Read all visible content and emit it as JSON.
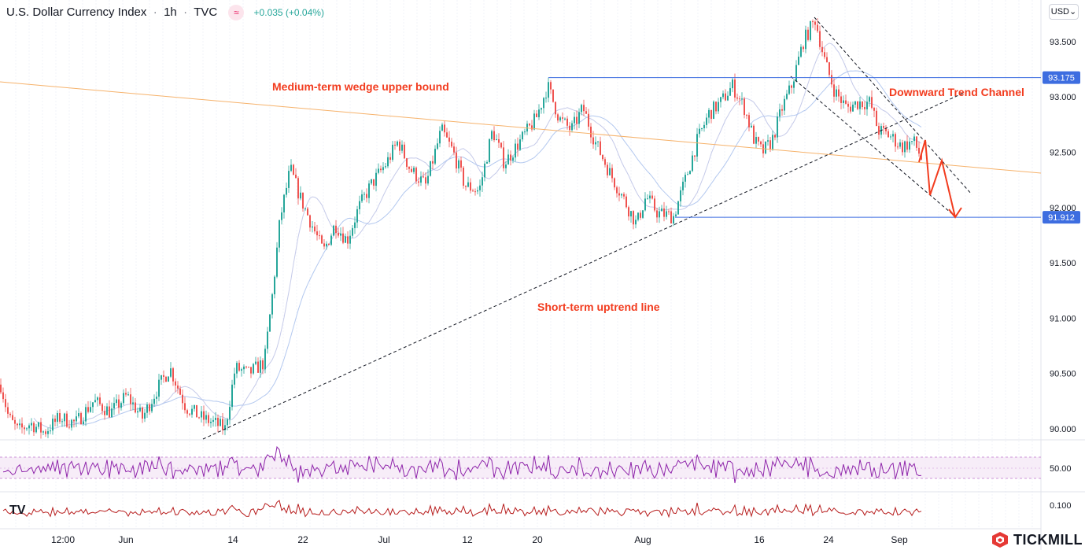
{
  "header": {
    "symbol": "U.S. Dollar Currency Index",
    "interval": "1h",
    "exchange": "TVC",
    "change": "+0.035 (+0.04%)"
  },
  "currency_selector": "USD",
  "watermark": "TV",
  "brand": "TICKMILL",
  "colors": {
    "up": "#26a69a",
    "down": "#ef5350",
    "annotation": "#f23c1f",
    "level_line": "#3d6de0",
    "wedge": "#f6b26b",
    "ma_fast": "#c5cae9",
    "ma_slow": "#b3c8ef",
    "rsi": "#8e24aa",
    "osc": "#b71c1c"
  },
  "chart_data": {
    "type": "candlestick",
    "title": "U.S. Dollar Currency Index · 1h · TVC",
    "ylim": [
      89.95,
      93.85
    ],
    "y_ticks": [
      "93.500",
      "93.000",
      "92.500",
      "92.000",
      "91.500",
      "91.000",
      "90.500",
      "90.000"
    ],
    "y_tick_values": [
      93.5,
      93.0,
      92.5,
      92.0,
      91.5,
      91.0,
      90.5,
      90.0
    ],
    "x_ticks": [
      "12:00",
      "Jun",
      "14",
      "22",
      "Jul",
      "12",
      "20",
      "Aug",
      "16",
      "24",
      "Sep"
    ],
    "anchors": [
      [
        0,
        90.4
      ],
      [
        10,
        90.1
      ],
      [
        22,
        89.98
      ],
      [
        38,
        90.05
      ],
      [
        55,
        89.97
      ],
      [
        75,
        90.1
      ],
      [
        95,
        90.05
      ],
      [
        118,
        90.25
      ],
      [
        140,
        90.15
      ],
      [
        160,
        90.3
      ],
      [
        180,
        90.1
      ],
      [
        198,
        90.35
      ],
      [
        215,
        90.55
      ],
      [
        235,
        90.2
      ],
      [
        255,
        90.1
      ],
      [
        272,
        90.05
      ],
      [
        285,
        90.0
      ],
      [
        298,
        90.55
      ],
      [
        315,
        90.5
      ],
      [
        335,
        90.6
      ],
      [
        345,
        91.2
      ],
      [
        355,
        91.9
      ],
      [
        368,
        92.35
      ],
      [
        380,
        92.1
      ],
      [
        395,
        91.85
      ],
      [
        410,
        91.6
      ],
      [
        425,
        91.85
      ],
      [
        440,
        91.7
      ],
      [
        455,
        92.0
      ],
      [
        470,
        92.2
      ],
      [
        490,
        92.4
      ],
      [
        505,
        92.6
      ],
      [
        520,
        92.35
      ],
      [
        540,
        92.2
      ],
      [
        560,
        92.7
      ],
      [
        575,
        92.5
      ],
      [
        590,
        92.2
      ],
      [
        608,
        92.15
      ],
      [
        625,
        92.7
      ],
      [
        640,
        92.4
      ],
      [
        660,
        92.6
      ],
      [
        680,
        92.8
      ],
      [
        695,
        93.1
      ],
      [
        710,
        92.8
      ],
      [
        725,
        92.7
      ],
      [
        740,
        92.9
      ],
      [
        755,
        92.6
      ],
      [
        775,
        92.3
      ],
      [
        790,
        92.1
      ],
      [
        808,
        91.85
      ],
      [
        820,
        92.1
      ],
      [
        835,
        91.95
      ],
      [
        855,
        91.92
      ],
      [
        870,
        92.25
      ],
      [
        885,
        92.6
      ],
      [
        900,
        92.85
      ],
      [
        915,
        92.95
      ],
      [
        930,
        93.1
      ],
      [
        945,
        92.9
      ],
      [
        958,
        92.6
      ],
      [
        968,
        92.5
      ],
      [
        980,
        92.6
      ],
      [
        993,
        92.9
      ],
      [
        1005,
        93.1
      ],
      [
        1020,
        93.5
      ],
      [
        1035,
        93.7
      ],
      [
        1048,
        93.3
      ],
      [
        1060,
        93.05
      ],
      [
        1075,
        92.9
      ],
      [
        1090,
        92.95
      ],
      [
        1105,
        92.95
      ],
      [
        1115,
        92.7
      ],
      [
        1130,
        92.65
      ],
      [
        1145,
        92.55
      ],
      [
        1160,
        92.6
      ],
      [
        1170,
        92.45
      ]
    ],
    "levels": [
      {
        "value": 93.175,
        "label": "93.175"
      },
      {
        "value": 91.912,
        "label": "91.912"
      }
    ],
    "rsi": {
      "value_label": "50.00",
      "band": [
        30,
        70
      ]
    },
    "oscillator": {
      "value_label": "0.100"
    },
    "annotations": {
      "wedge": "Medium-term wedge upper bound",
      "channel": "Downward Trend Channel",
      "uptrend": "Short-term uptrend line"
    }
  }
}
